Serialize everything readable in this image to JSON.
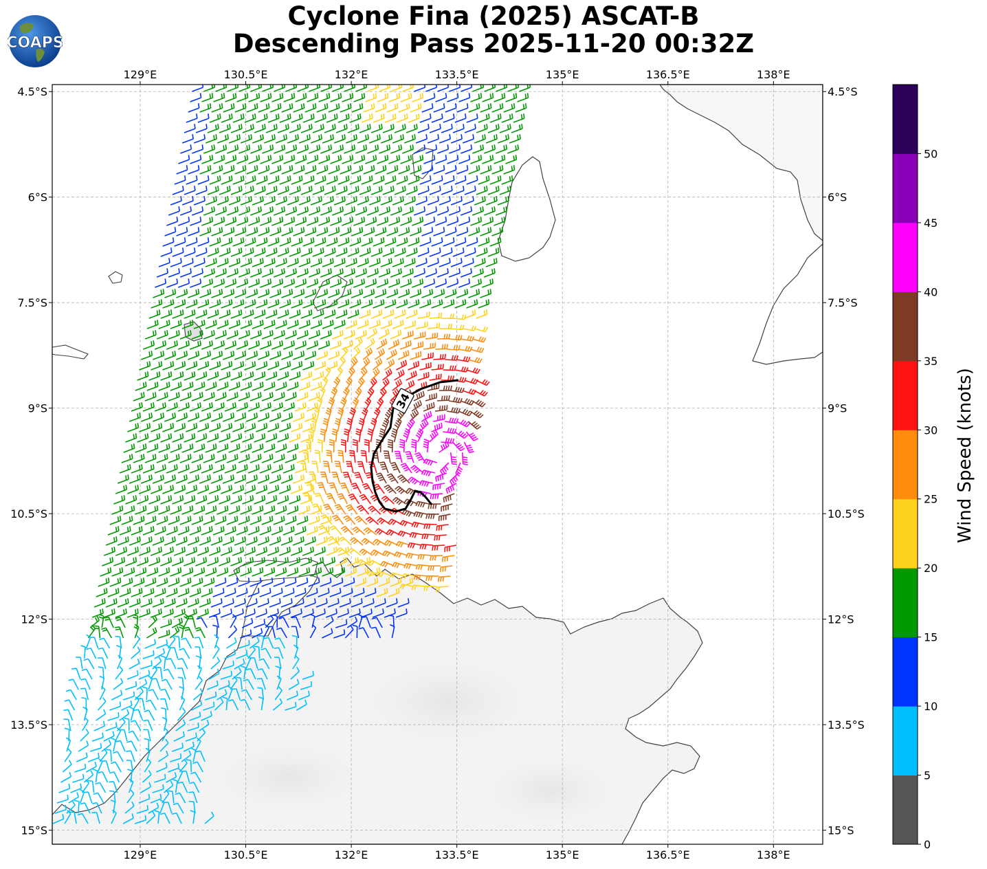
{
  "title": {
    "line1": "Cyclone Fina (2025) ASCAT-B",
    "line2": "Descending Pass 2025-11-20 00:32Z"
  },
  "logo": {
    "text": "COAPS",
    "icon": "globe-icon"
  },
  "map": {
    "lon_range": [
      127.75,
      138.7
    ],
    "lat_range": [
      -15.2,
      -4.4
    ],
    "lon_ticks": [
      "129°E",
      "130.5°E",
      "132°E",
      "133.5°E",
      "135°E",
      "136.5°E",
      "138°E"
    ],
    "lat_ticks": [
      "4.5°S",
      "6°S",
      "7.5°S",
      "9°S",
      "10.5°S",
      "12°S",
      "13.5°S",
      "15°S"
    ],
    "contour_label": "34",
    "gridlines": true
  },
  "colorbar": {
    "label": "Wind Speed (knots)",
    "ticks": [
      "0",
      "5",
      "10",
      "15",
      "20",
      "25",
      "30",
      "35",
      "40",
      "45",
      "50"
    ],
    "colors": [
      "#555555",
      "#00bfff",
      "#0033ff",
      "#009900",
      "#ffd21f",
      "#ff8c0a",
      "#ff1212",
      "#7f3a26",
      "#ff00ff",
      "#8a00b8",
      "#2a0058"
    ]
  },
  "colors": {
    "coast": "#404040",
    "grid": "#b0b0b0",
    "contour": "#000000"
  }
}
